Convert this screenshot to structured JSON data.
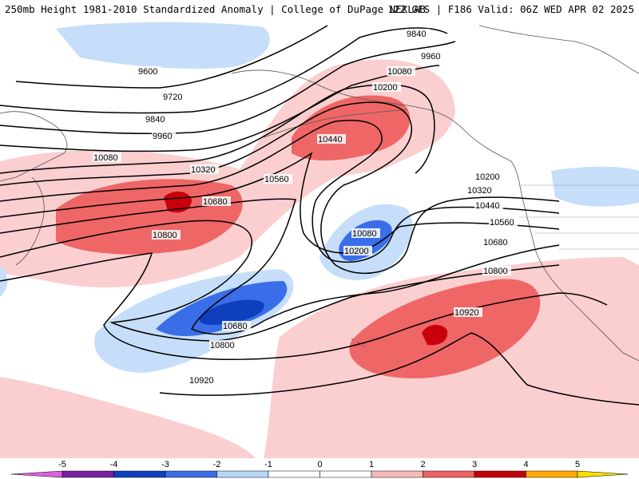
{
  "header": {
    "left_title": "250mb Height 1981-2010 Standardized Anomaly | College of DuPage NEXLAB",
    "right_title": "12Z GFS | F186 Valid: 06Z WED APR 02 2025"
  },
  "contour_labels": [
    "9600",
    "9720",
    "9840",
    "9960",
    "10080",
    "10200",
    "10320",
    "10440",
    "10560",
    "10680",
    "10800",
    "10920",
    "9840",
    "9960",
    "10080",
    "10200",
    "10320",
    "10440",
    "10560",
    "10680",
    "10800",
    "10920",
    "10080",
    "10200",
    "10680",
    "10800"
  ],
  "colorbar": {
    "tick_labels": [
      "-5",
      "-4",
      "-3",
      "-2",
      "-1",
      "0",
      "1",
      "2",
      "3",
      "4",
      "5"
    ],
    "colors": [
      "#e060e0",
      "#7b1fa2",
      "#0d3fbf",
      "#3a6ee8",
      "#b9d7f7",
      "#ffffff",
      "#ffffff",
      "#f7b9b9",
      "#ef6161",
      "#c4000a",
      "#ffaa00",
      "#f7e000"
    ]
  },
  "anomaly_colors": {
    "neg3": "#0d3fbf",
    "neg2": "#3a6ee8",
    "neg1": "#c6def9",
    "pos1": "#fbcfcf",
    "pos2": "#ef6666",
    "pos3": "#c8000c"
  }
}
